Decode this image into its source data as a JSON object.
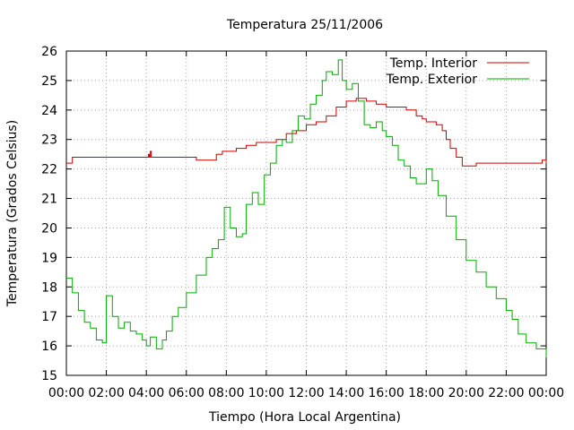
{
  "chart_data": {
    "type": "line",
    "title": "Temperatura 25/11/2006",
    "xlabel": "Tiempo (Hora Local Argentina)",
    "ylabel": "Temperatura (Grados Celsius)",
    "xlim": [
      0,
      24
    ],
    "ylim": [
      15,
      26
    ],
    "x_ticks": [
      0,
      2,
      4,
      6,
      8,
      10,
      12,
      14,
      16,
      18,
      20,
      22,
      24
    ],
    "x_tick_labels": [
      "00:00",
      "02:00",
      "04:00",
      "06:00",
      "08:00",
      "10:00",
      "12:00",
      "14:00",
      "16:00",
      "18:00",
      "20:00",
      "22:00",
      "00:00"
    ],
    "y_ticks": [
      15,
      16,
      17,
      18,
      19,
      20,
      21,
      22,
      23,
      24,
      25,
      26
    ],
    "y_tick_labels": [
      "15",
      "16",
      "17",
      "18",
      "19",
      "20",
      "21",
      "22",
      "23",
      "24",
      "25",
      "26"
    ],
    "grid": true,
    "legend_position": "top-right",
    "series": [
      {
        "name": "Temp. Interior",
        "color": "#cc0000",
        "x": [
          0.0,
          0.2,
          0.3,
          1.0,
          2.0,
          3.0,
          4.0,
          4.1,
          4.15,
          4.2,
          4.25,
          4.3,
          5.0,
          6.0,
          6.5,
          7.0,
          7.5,
          7.8,
          8.5,
          9.0,
          9.5,
          10.0,
          10.5,
          11.0,
          11.5,
          12.0,
          12.5,
          13.0,
          13.5,
          14.0,
          14.5,
          15.0,
          15.5,
          16.0,
          16.5,
          17.0,
          17.5,
          17.8,
          18.0,
          18.5,
          18.8,
          19.0,
          19.2,
          19.5,
          19.8,
          20.0,
          20.5,
          21.0,
          22.0,
          22.5,
          23.0,
          23.5,
          23.8,
          24.0
        ],
        "y": [
          22.2,
          22.2,
          22.4,
          22.4,
          22.4,
          22.4,
          22.4,
          22.5,
          22.4,
          22.6,
          22.4,
          22.4,
          22.4,
          22.4,
          22.3,
          22.3,
          22.5,
          22.6,
          22.7,
          22.8,
          22.9,
          22.9,
          23.0,
          23.2,
          23.3,
          23.5,
          23.6,
          23.8,
          24.1,
          24.3,
          24.4,
          24.3,
          24.2,
          24.1,
          24.1,
          24.0,
          23.8,
          23.7,
          23.6,
          23.5,
          23.3,
          23.0,
          22.7,
          22.4,
          22.1,
          22.1,
          22.2,
          22.2,
          22.2,
          22.2,
          22.2,
          22.2,
          22.3,
          22.2
        ]
      },
      {
        "name": "Temp. Exterior",
        "color": "#00aa00",
        "x": [
          0.0,
          0.3,
          0.6,
          0.9,
          1.2,
          1.5,
          1.8,
          2.0,
          2.3,
          2.6,
          2.9,
          3.2,
          3.5,
          3.8,
          4.0,
          4.2,
          4.5,
          4.8,
          5.0,
          5.3,
          5.6,
          6.0,
          6.5,
          7.0,
          7.3,
          7.6,
          7.9,
          8.2,
          8.5,
          8.8,
          9.0,
          9.3,
          9.6,
          9.9,
          10.2,
          10.5,
          10.8,
          11.0,
          11.3,
          11.6,
          11.9,
          12.2,
          12.5,
          12.8,
          13.0,
          13.3,
          13.6,
          13.8,
          14.0,
          14.3,
          14.6,
          14.9,
          15.2,
          15.5,
          15.8,
          16.0,
          16.3,
          16.6,
          16.9,
          17.2,
          17.5,
          17.8,
          18.0,
          18.3,
          18.6,
          19.0,
          19.5,
          20.0,
          20.5,
          21.0,
          21.5,
          22.0,
          22.3,
          22.6,
          23.0,
          23.5,
          24.0
        ],
        "y": [
          18.3,
          17.8,
          17.2,
          16.8,
          16.6,
          16.2,
          16.1,
          17.7,
          17.0,
          16.6,
          16.8,
          16.5,
          16.4,
          16.2,
          16.0,
          16.3,
          15.9,
          16.2,
          16.5,
          17.0,
          17.3,
          17.8,
          18.4,
          19.0,
          19.3,
          19.6,
          20.7,
          20.0,
          19.7,
          19.8,
          20.8,
          21.2,
          20.8,
          21.8,
          22.2,
          22.8,
          23.0,
          22.9,
          23.3,
          23.8,
          23.7,
          24.2,
          24.5,
          25.0,
          25.3,
          25.2,
          25.7,
          25.0,
          24.7,
          24.9,
          24.3,
          23.5,
          23.4,
          23.6,
          23.3,
          23.1,
          22.8,
          22.3,
          22.1,
          21.7,
          21.5,
          21.5,
          22.0,
          21.6,
          21.1,
          20.4,
          19.6,
          18.9,
          18.5,
          18.0,
          17.6,
          17.2,
          16.9,
          16.4,
          16.1,
          15.9,
          15.6
        ]
      }
    ]
  }
}
